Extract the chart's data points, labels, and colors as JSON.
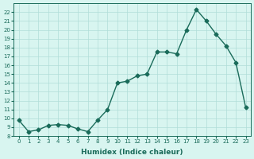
{
  "x": [
    0,
    1,
    2,
    3,
    4,
    5,
    6,
    7,
    8,
    9,
    10,
    11,
    12,
    13,
    14,
    15,
    16,
    17,
    18,
    19,
    20,
    21,
    22,
    23
  ],
  "y": [
    9.8,
    8.5,
    8.7,
    9.2,
    9.3,
    9.2,
    8.8,
    8.5,
    9.8,
    11.0,
    14.0,
    14.2,
    14.8,
    15.0,
    17.5,
    17.5,
    17.3,
    20.0,
    22.3,
    21.0,
    19.5,
    18.2,
    16.3,
    11.2
  ],
  "xlim": [
    -0.5,
    23.5
  ],
  "ylim": [
    8,
    23
  ],
  "yticks": [
    8,
    9,
    10,
    11,
    12,
    13,
    14,
    15,
    16,
    17,
    18,
    19,
    20,
    21,
    22
  ],
  "xticks": [
    0,
    1,
    2,
    3,
    4,
    5,
    6,
    7,
    8,
    9,
    10,
    11,
    12,
    13,
    14,
    15,
    16,
    17,
    18,
    19,
    20,
    21,
    22,
    23
  ],
  "xlabel": "Humidex (Indice chaleur)",
  "line_color": "#1a6b5a",
  "marker": "D",
  "bg_color": "#d8f5f0",
  "grid_color": "#b0ddd8",
  "font_color": "#1a6b5a"
}
